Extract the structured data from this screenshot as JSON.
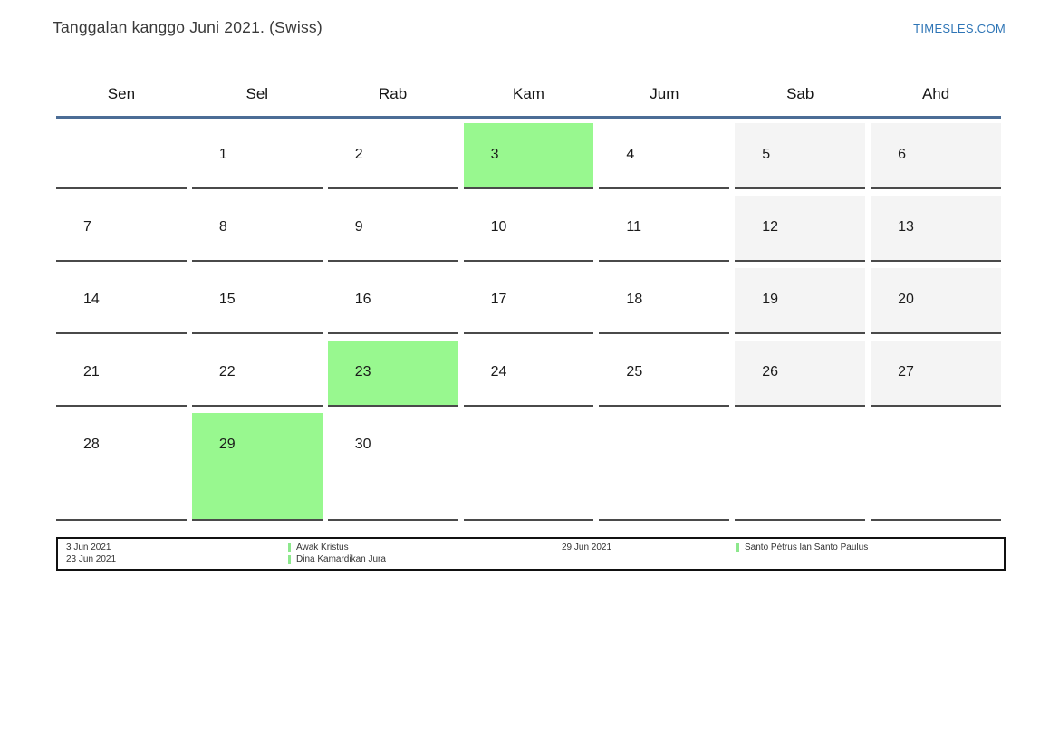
{
  "header": {
    "title": "Tanggalan kanggo Juni 2021. (Swiss)",
    "site_link": "TIMESLES.COM"
  },
  "calendar": {
    "day_headers": [
      "Sen",
      "Sel",
      "Rab",
      "Kam",
      "Jum",
      "Sab",
      "Ahd"
    ],
    "weeks": [
      [
        {
          "day": "",
          "type": "empty"
        },
        {
          "day": "1",
          "type": "normal"
        },
        {
          "day": "2",
          "type": "normal"
        },
        {
          "day": "3",
          "type": "holiday"
        },
        {
          "day": "4",
          "type": "normal"
        },
        {
          "day": "5",
          "type": "weekend"
        },
        {
          "day": "6",
          "type": "weekend"
        }
      ],
      [
        {
          "day": "7",
          "type": "normal"
        },
        {
          "day": "8",
          "type": "normal"
        },
        {
          "day": "9",
          "type": "normal"
        },
        {
          "day": "10",
          "type": "normal"
        },
        {
          "day": "11",
          "type": "normal"
        },
        {
          "day": "12",
          "type": "weekend"
        },
        {
          "day": "13",
          "type": "weekend"
        }
      ],
      [
        {
          "day": "14",
          "type": "normal"
        },
        {
          "day": "15",
          "type": "normal"
        },
        {
          "day": "16",
          "type": "normal"
        },
        {
          "day": "17",
          "type": "normal"
        },
        {
          "day": "18",
          "type": "normal"
        },
        {
          "day": "19",
          "type": "weekend"
        },
        {
          "day": "20",
          "type": "weekend"
        }
      ],
      [
        {
          "day": "21",
          "type": "normal"
        },
        {
          "day": "22",
          "type": "normal"
        },
        {
          "day": "23",
          "type": "holiday"
        },
        {
          "day": "24",
          "type": "normal"
        },
        {
          "day": "25",
          "type": "normal"
        },
        {
          "day": "26",
          "type": "weekend"
        },
        {
          "day": "27",
          "type": "weekend"
        }
      ],
      [
        {
          "day": "28",
          "type": "normal"
        },
        {
          "day": "29",
          "type": "holiday"
        },
        {
          "day": "30",
          "type": "normal"
        },
        {
          "day": "",
          "type": "empty"
        },
        {
          "day": "",
          "type": "empty"
        },
        {
          "day": "",
          "type": "empty"
        },
        {
          "day": "",
          "type": "empty"
        }
      ]
    ]
  },
  "legend": {
    "groups": [
      {
        "dates": [
          "3 Jun 2021",
          "23 Jun 2021"
        ],
        "labels": [
          "Awak Kristus",
          "Dina Kamardikan Jura"
        ]
      },
      {
        "dates": [
          "29 Jun 2021"
        ],
        "labels": [
          "Santo Pétrus lan Santo Paulus"
        ]
      }
    ]
  },
  "colors": {
    "holiday_green": "#98f88f",
    "weekend_gray": "#f4f4f4",
    "header_line_blue": "#4c6d96",
    "link_blue": "#2e75b6",
    "legend_marker_green": "#8de88d",
    "cell_border": "#4a4a4a"
  }
}
